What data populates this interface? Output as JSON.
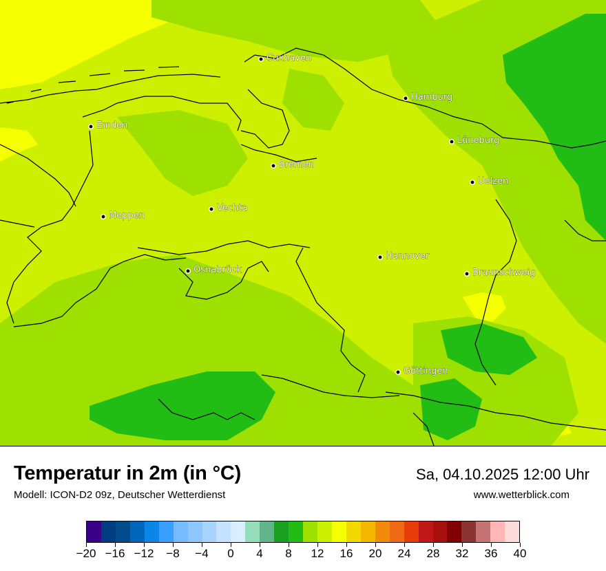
{
  "title": "Temperatur in 2m (in °C)",
  "subtitle": "Modell: ICON-D2 09z, Deutscher Wetterdienst",
  "datetime": "Sa, 04.10.2025 12:00 Uhr",
  "source": "www.wetterblick.com",
  "colors": {
    "t10": "#22bd14",
    "t12": "#9ee000",
    "t14": "#cdf000",
    "t16": "#f5ff00"
  },
  "cities": [
    {
      "name": "Cuxhaven"
    },
    {
      "name": "Hamburg"
    },
    {
      "name": "Emden"
    },
    {
      "name": "Lüneburg"
    },
    {
      "name": "Bremen"
    },
    {
      "name": "Uelzen"
    },
    {
      "name": "Vechta"
    },
    {
      "name": "Meppen"
    },
    {
      "name": "Hannover"
    },
    {
      "name": "Osnabrück"
    },
    {
      "name": "Braunschweig"
    },
    {
      "name": "Göttingen"
    }
  ],
  "legend": {
    "min": -20,
    "max": 40,
    "tick_labels": [
      "−20",
      "−16",
      "−12",
      "−8",
      "−4",
      "0",
      "4",
      "8",
      "12",
      "16",
      "20",
      "24",
      "28",
      "32",
      "36",
      "40"
    ],
    "tick_values": [
      -20,
      -16,
      -12,
      -8,
      -4,
      0,
      4,
      8,
      12,
      16,
      20,
      24,
      28,
      32,
      36,
      40
    ],
    "steps": [
      "#3a0088",
      "#003c82",
      "#004b8c",
      "#0066bb",
      "#0a86e6",
      "#3aa0ff",
      "#76baff",
      "#8ec6ff",
      "#a6d4ff",
      "#c4e2ff",
      "#d9eeff",
      "#95dcbc",
      "#62b48a",
      "#1aa020",
      "#22bd14",
      "#9ee000",
      "#cdf000",
      "#f5ff00",
      "#f2da00",
      "#f4b800",
      "#f28a0a",
      "#f06a14",
      "#e83c0a",
      "#c01818",
      "#a81010",
      "#820000",
      "#8a3434",
      "#c47474",
      "#ffb6b6",
      "#ffdcdc"
    ]
  }
}
